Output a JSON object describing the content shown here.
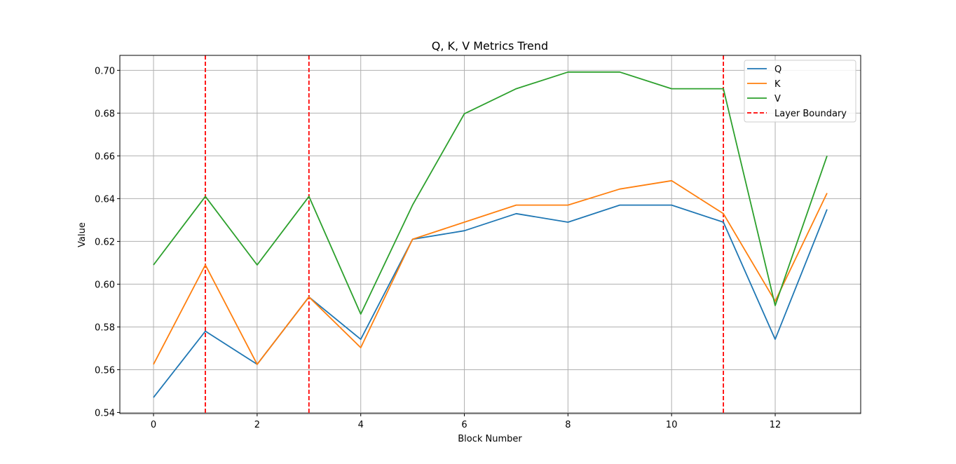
{
  "chart_data": {
    "type": "line",
    "title": "Q, K, V Metrics Trend",
    "xlabel": "Block Number",
    "ylabel": "Value",
    "x": [
      0,
      1,
      2,
      3,
      4,
      5,
      6,
      7,
      8,
      9,
      10,
      11,
      12,
      13
    ],
    "xlim": [
      -0.65,
      13.65
    ],
    "ylim": [
      0.5395,
      0.707
    ],
    "xticks": [
      0,
      2,
      4,
      6,
      8,
      10,
      12
    ],
    "yticks": [
      0.54,
      0.56,
      0.58,
      0.6,
      0.62,
      0.64,
      0.66,
      0.68,
      0.7
    ],
    "xtick_labels": [
      "0",
      "2",
      "4",
      "6",
      "8",
      "10",
      "12"
    ],
    "ytick_labels": [
      "0.54",
      "0.56",
      "0.58",
      "0.60",
      "0.62",
      "0.64",
      "0.66",
      "0.68",
      "0.70"
    ],
    "grid": true,
    "legend_position": "top-right",
    "series": [
      {
        "name": "Q",
        "color": "#1f77b4",
        "values": [
          0.547,
          0.578,
          0.5625,
          0.594,
          0.5742,
          0.621,
          0.625,
          0.633,
          0.629,
          0.637,
          0.637,
          0.629,
          0.5742,
          0.635
        ]
      },
      {
        "name": "K",
        "color": "#ff7f0e",
        "values": [
          0.5625,
          0.609,
          0.5625,
          0.594,
          0.5703,
          0.621,
          0.629,
          0.637,
          0.637,
          0.6445,
          0.6484,
          0.633,
          0.592,
          0.6426
        ]
      },
      {
        "name": "V",
        "color": "#2ca02c",
        "values": [
          0.609,
          0.641,
          0.609,
          0.641,
          0.586,
          0.637,
          0.6797,
          0.6914,
          0.6992,
          0.6992,
          0.6914,
          0.6914,
          0.59,
          0.66
        ]
      }
    ],
    "boundary": {
      "name": "Layer Boundary",
      "color": "#ff0000",
      "x": [
        1,
        3,
        11
      ]
    }
  }
}
